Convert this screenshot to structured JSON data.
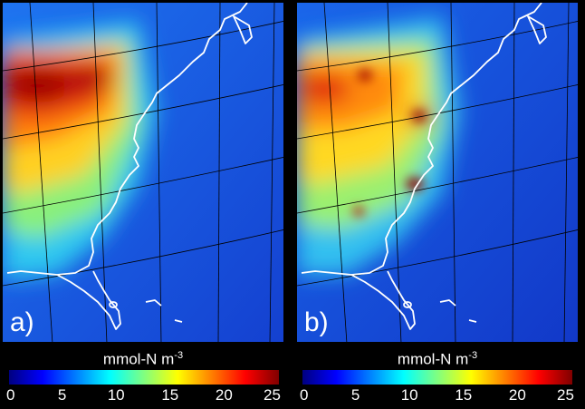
{
  "panels": [
    {
      "id": "a",
      "label": "a)"
    },
    {
      "id": "b",
      "label": "b)"
    }
  ],
  "colorbar": {
    "unit_main": "mmol-N m",
    "unit_exp": "-3",
    "ticks": [
      "0",
      "5",
      "10",
      "15",
      "20",
      "25"
    ],
    "min": 0,
    "max": 25,
    "colors": [
      "#000080",
      "#0000ff",
      "#0080ff",
      "#00ffff",
      "#80ff80",
      "#ffff00",
      "#ff8000",
      "#ff0000",
      "#800000"
    ]
  }
}
